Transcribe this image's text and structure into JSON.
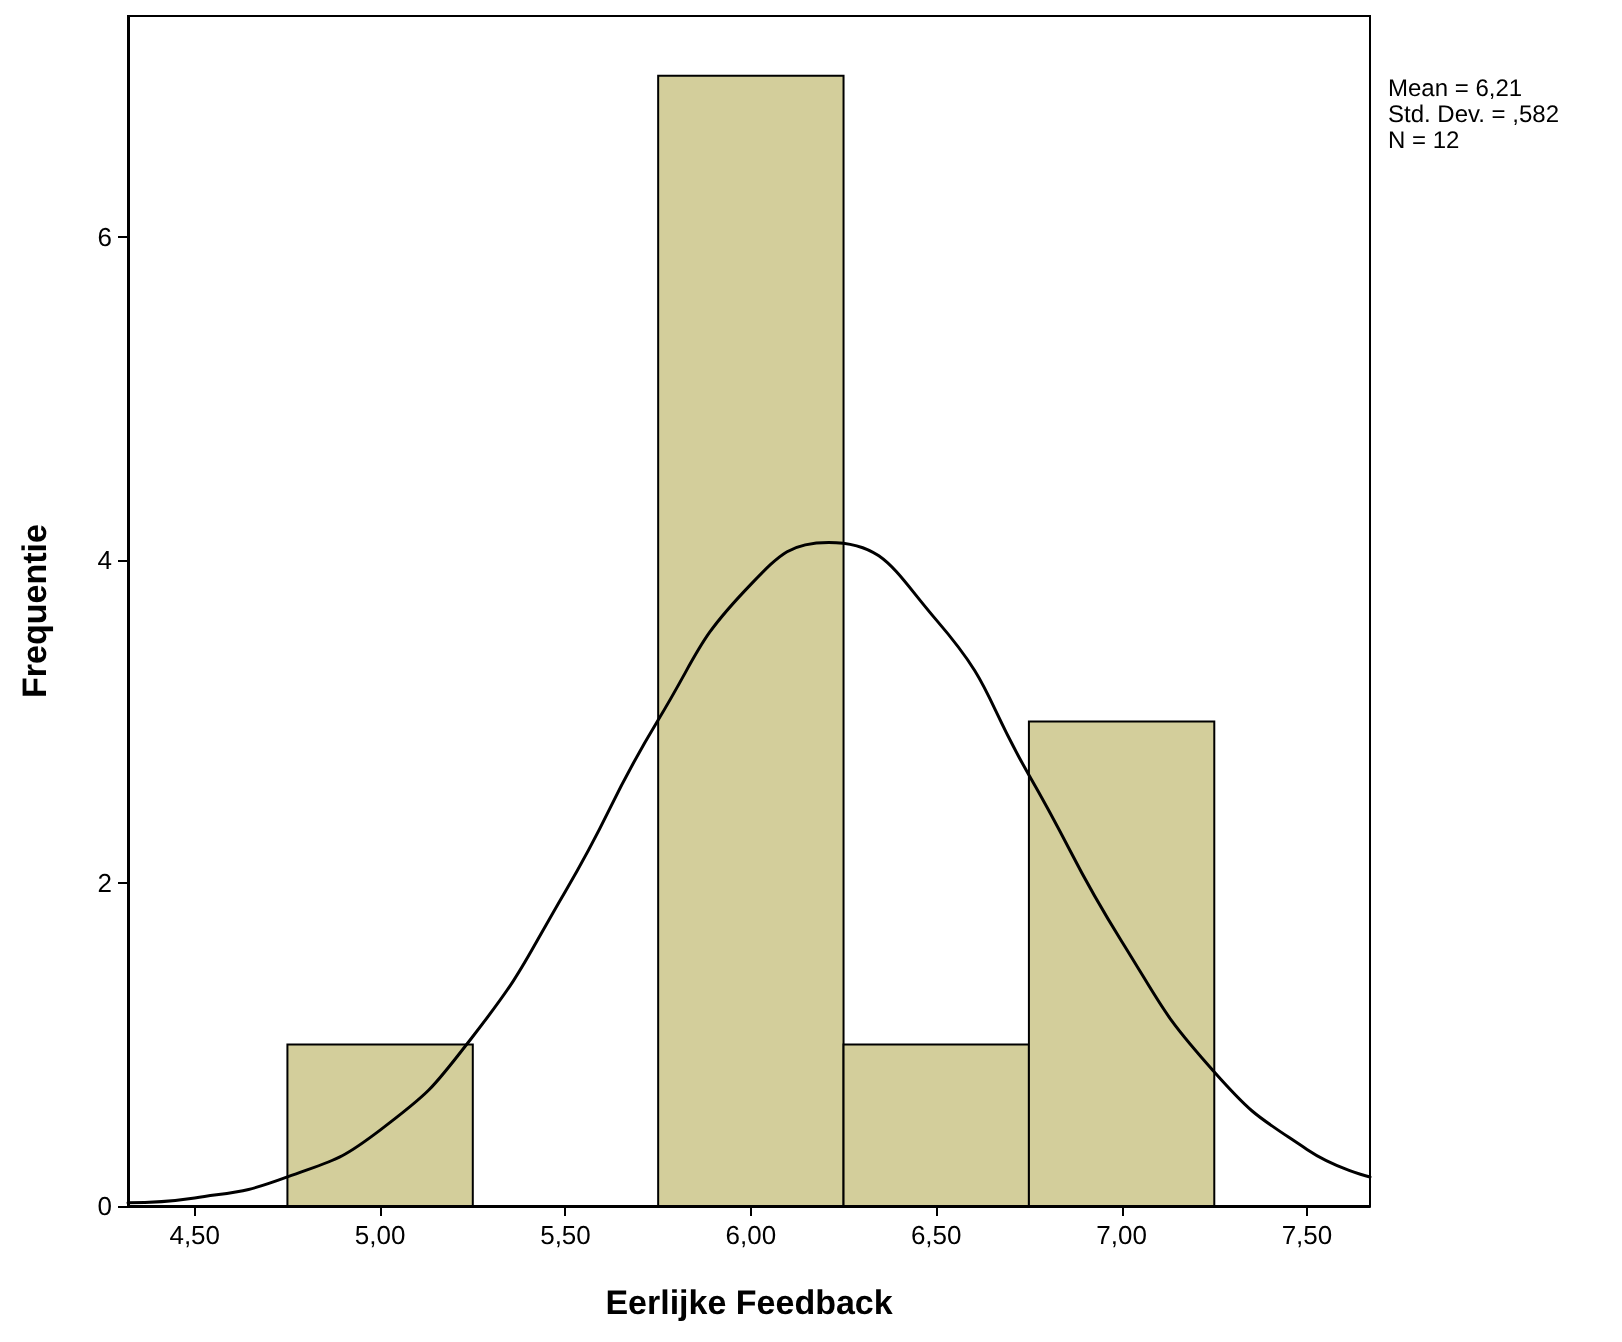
{
  "chart_data": {
    "type": "histogram",
    "xlabel": "Eerlijke Feedback",
    "ylabel": "Frequentie",
    "annotations": [
      "Mean = 6,21",
      "Std. Dev. = ,582",
      "N = 12"
    ],
    "series": [
      {
        "color": "#d3ce9b",
        "bins": [
          4.75,
          5.25,
          5.75,
          6.25,
          6.75,
          7.25
        ],
        "values": [
          1,
          0,
          7,
          1,
          3
        ]
      },
      {
        "type": "line",
        "color": "#000000",
        "x": [
          4.32,
          4.5,
          4.75,
          5.0,
          5.25,
          5.5,
          5.75,
          6.0,
          6.21,
          6.5,
          6.75,
          7.0,
          7.25,
          7.5,
          7.67
        ],
        "values": [
          0.02,
          0.05,
          0.18,
          0.47,
          1.05,
          1.95,
          3.01,
          3.85,
          4.11,
          3.63,
          2.67,
          1.64,
          0.83,
          0.35,
          0.18
        ]
      }
    ],
    "xlim": [
      4.32,
      7.67
    ],
    "xticks": [
      {
        "value": 4.5,
        "label": "4,50"
      },
      {
        "value": 5,
        "label": "5,00"
      },
      {
        "value": 5.5,
        "label": "5,50"
      },
      {
        "value": 6,
        "label": "6,00"
      },
      {
        "value": 6.5,
        "label": "6,50"
      },
      {
        "value": 7,
        "label": "7,00"
      },
      {
        "value": 7.5,
        "label": "7,50"
      }
    ],
    "ylim": [
      0,
      7.37
    ],
    "yticks": [
      0,
      2,
      4,
      6
    ],
    "marker": "none",
    "line_style": "solid"
  }
}
